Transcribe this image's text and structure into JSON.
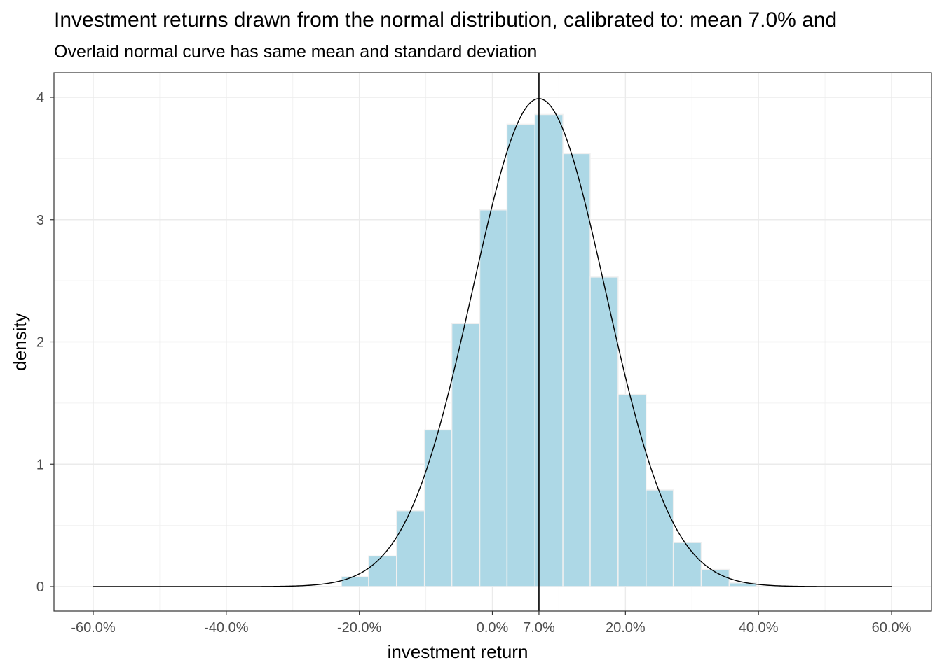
{
  "title": "Investment returns drawn from the normal distribution, calibrated to: mean 7.0% and",
  "subtitle": "Overlaid normal curve has same mean and standard deviation",
  "chart_data": {
    "type": "bar",
    "subtype": "histogram with overlaid normal density curve",
    "xlabel": "investment return",
    "ylabel": "density",
    "xlim": [
      -0.6,
      0.6
    ],
    "ylim": [
      0,
      4
    ],
    "grid": true,
    "fill_color": "#add8e6",
    "bar_edge_color": "#f0f0f0",
    "curve_color": "#000000",
    "x_ticks": [
      {
        "value": -0.6,
        "label": "-60.0%"
      },
      {
        "value": -0.4,
        "label": "-40.0%"
      },
      {
        "value": -0.2,
        "label": "-20.0%"
      },
      {
        "value": 0.0,
        "label": "0.0%"
      },
      {
        "value": 0.07,
        "label": "7.0%"
      },
      {
        "value": 0.2,
        "label": "20.0%"
      },
      {
        "value": 0.4,
        "label": "40.0%"
      },
      {
        "value": 0.6,
        "label": "60.0%"
      }
    ],
    "y_ticks": [
      {
        "value": 0,
        "label": "0"
      },
      {
        "value": 1,
        "label": "1"
      },
      {
        "value": 2,
        "label": "2"
      },
      {
        "value": 3,
        "label": "3"
      },
      {
        "value": 4,
        "label": "4"
      }
    ],
    "bins": [
      {
        "x0": -0.269,
        "x1": -0.227,
        "density": 0.0
      },
      {
        "x0": -0.227,
        "x1": -0.186,
        "density": 0.08
      },
      {
        "x0": -0.186,
        "x1": -0.144,
        "density": 0.25
      },
      {
        "x0": -0.144,
        "x1": -0.102,
        "density": 0.62
      },
      {
        "x0": -0.102,
        "x1": -0.061,
        "density": 1.28
      },
      {
        "x0": -0.061,
        "x1": -0.019,
        "density": 2.15
      },
      {
        "x0": -0.019,
        "x1": 0.022,
        "density": 3.08
      },
      {
        "x0": 0.022,
        "x1": 0.064,
        "density": 3.78
      },
      {
        "x0": 0.064,
        "x1": 0.106,
        "density": 3.86
      },
      {
        "x0": 0.106,
        "x1": 0.147,
        "density": 3.54
      },
      {
        "x0": 0.147,
        "x1": 0.189,
        "density": 2.53
      },
      {
        "x0": 0.189,
        "x1": 0.231,
        "density": 1.57
      },
      {
        "x0": 0.231,
        "x1": 0.272,
        "density": 0.79
      },
      {
        "x0": 0.272,
        "x1": 0.314,
        "density": 0.36
      },
      {
        "x0": 0.314,
        "x1": 0.356,
        "density": 0.14
      },
      {
        "x0": 0.356,
        "x1": 0.397,
        "density": 0.03
      }
    ],
    "normal_curve": {
      "mean": 0.07,
      "sd": 0.1,
      "x_from": -0.6,
      "x_to": 0.6
    },
    "vline": {
      "x": 0.07
    }
  }
}
